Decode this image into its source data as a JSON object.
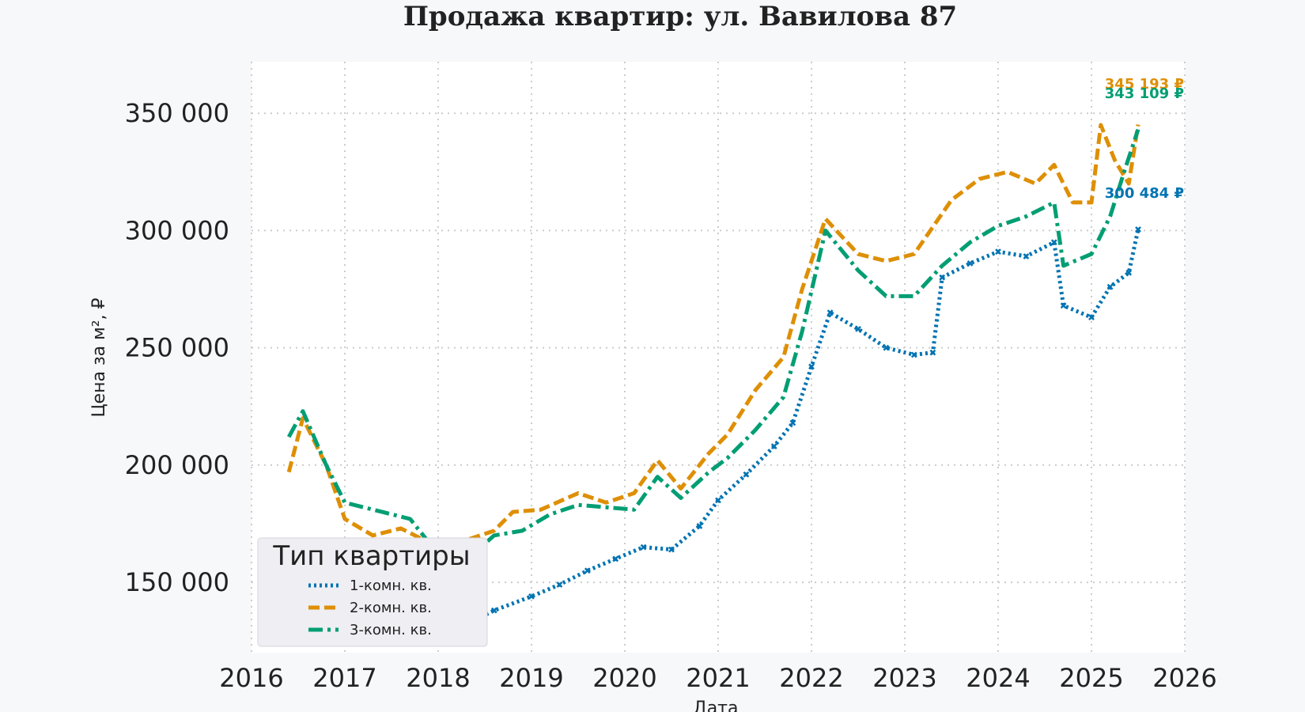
{
  "chart_data": {
    "type": "line",
    "title": "Продажа квартир: ул. Вавилова 87",
    "xlabel": "Дата",
    "ylabel": "Цена за м², ₽",
    "xlim": [
      2016,
      2026
    ],
    "ylim": [
      120000,
      372000
    ],
    "x_ticks": [
      2016,
      2017,
      2018,
      2019,
      2020,
      2021,
      2022,
      2023,
      2024,
      2025,
      2026
    ],
    "y_ticks": [
      150000,
      200000,
      250000,
      300000,
      350000
    ],
    "y_tick_labels": [
      "150 000",
      "200 000",
      "250 000",
      "300 000",
      "350 000"
    ],
    "grid": true,
    "legend": {
      "title": "Тип квартиры",
      "position": "bottom-left",
      "entries": [
        "1-комн. кв.",
        "2-комн. кв.",
        "3-комн. кв."
      ]
    },
    "series": [
      {
        "name": "1-комн. кв.",
        "color": "#0173b2",
        "style": "dotted-x",
        "end_label": "300 484 ₽",
        "end_value": 300484,
        "points": [
          [
            2016.4,
            149000
          ],
          [
            2016.7,
            147000
          ],
          [
            2017.0,
            144000
          ],
          [
            2017.4,
            141000
          ],
          [
            2017.7,
            137000
          ],
          [
            2018.0,
            133000
          ],
          [
            2018.3,
            132000
          ],
          [
            2018.6,
            138000
          ],
          [
            2019.0,
            144000
          ],
          [
            2019.3,
            149000
          ],
          [
            2019.6,
            155000
          ],
          [
            2019.9,
            160000
          ],
          [
            2020.2,
            165000
          ],
          [
            2020.5,
            164000
          ],
          [
            2020.8,
            174000
          ],
          [
            2021.0,
            185000
          ],
          [
            2021.3,
            196000
          ],
          [
            2021.6,
            208000
          ],
          [
            2021.8,
            218000
          ],
          [
            2022.0,
            242000
          ],
          [
            2022.2,
            265000
          ],
          [
            2022.5,
            258000
          ],
          [
            2022.8,
            250000
          ],
          [
            2023.1,
            247000
          ],
          [
            2023.3,
            248000
          ],
          [
            2023.4,
            280000
          ],
          [
            2023.7,
            286000
          ],
          [
            2024.0,
            291000
          ],
          [
            2024.3,
            289000
          ],
          [
            2024.6,
            295000
          ],
          [
            2024.7,
            268000
          ],
          [
            2025.0,
            263000
          ],
          [
            2025.2,
            276000
          ],
          [
            2025.4,
            282000
          ],
          [
            2025.5,
            300484
          ]
        ]
      },
      {
        "name": "2-комн. кв.",
        "color": "#de8f05",
        "style": "dashed",
        "end_label": "345 193 ₽",
        "end_value": 345193,
        "points": [
          [
            2016.4,
            197000
          ],
          [
            2016.55,
            220000
          ],
          [
            2016.8,
            200000
          ],
          [
            2017.0,
            177000
          ],
          [
            2017.3,
            170000
          ],
          [
            2017.6,
            173000
          ],
          [
            2018.0,
            165000
          ],
          [
            2018.3,
            168000
          ],
          [
            2018.6,
            172000
          ],
          [
            2018.8,
            180000
          ],
          [
            2019.1,
            181000
          ],
          [
            2019.5,
            188000
          ],
          [
            2019.8,
            184000
          ],
          [
            2020.1,
            188000
          ],
          [
            2020.35,
            202000
          ],
          [
            2020.6,
            190000
          ],
          [
            2020.9,
            205000
          ],
          [
            2021.1,
            213000
          ],
          [
            2021.4,
            232000
          ],
          [
            2021.7,
            246000
          ],
          [
            2021.9,
            275000
          ],
          [
            2022.15,
            305000
          ],
          [
            2022.5,
            290000
          ],
          [
            2022.8,
            287000
          ],
          [
            2023.1,
            290000
          ],
          [
            2023.5,
            313000
          ],
          [
            2023.8,
            322000
          ],
          [
            2024.1,
            325000
          ],
          [
            2024.4,
            320000
          ],
          [
            2024.6,
            328000
          ],
          [
            2024.8,
            312000
          ],
          [
            2025.0,
            312000
          ],
          [
            2025.1,
            345000
          ],
          [
            2025.25,
            330000
          ],
          [
            2025.4,
            320000
          ],
          [
            2025.5,
            345193
          ]
        ]
      },
      {
        "name": "3-комн. кв.",
        "color": "#029e73",
        "style": "dashdot",
        "end_label": "343 109 ₽",
        "end_value": 343109,
        "points": [
          [
            2016.4,
            212000
          ],
          [
            2016.55,
            223000
          ],
          [
            2016.8,
            200000
          ],
          [
            2017.0,
            184000
          ],
          [
            2017.4,
            180000
          ],
          [
            2017.7,
            177000
          ],
          [
            2018.0,
            162000
          ],
          [
            2018.4,
            163000
          ],
          [
            2018.6,
            170000
          ],
          [
            2018.9,
            172000
          ],
          [
            2019.2,
            179000
          ],
          [
            2019.5,
            183000
          ],
          [
            2019.8,
            182000
          ],
          [
            2020.1,
            181000
          ],
          [
            2020.35,
            195000
          ],
          [
            2020.6,
            186000
          ],
          [
            2020.9,
            197000
          ],
          [
            2021.1,
            203000
          ],
          [
            2021.4,
            215000
          ],
          [
            2021.7,
            229000
          ],
          [
            2021.9,
            257000
          ],
          [
            2022.15,
            300000
          ],
          [
            2022.5,
            283000
          ],
          [
            2022.8,
            272000
          ],
          [
            2023.1,
            272000
          ],
          [
            2023.4,
            285000
          ],
          [
            2023.7,
            295000
          ],
          [
            2024.0,
            302000
          ],
          [
            2024.3,
            306000
          ],
          [
            2024.6,
            312000
          ],
          [
            2024.7,
            285000
          ],
          [
            2025.0,
            290000
          ],
          [
            2025.2,
            306000
          ],
          [
            2025.35,
            325000
          ],
          [
            2025.5,
            343109
          ]
        ]
      }
    ]
  }
}
